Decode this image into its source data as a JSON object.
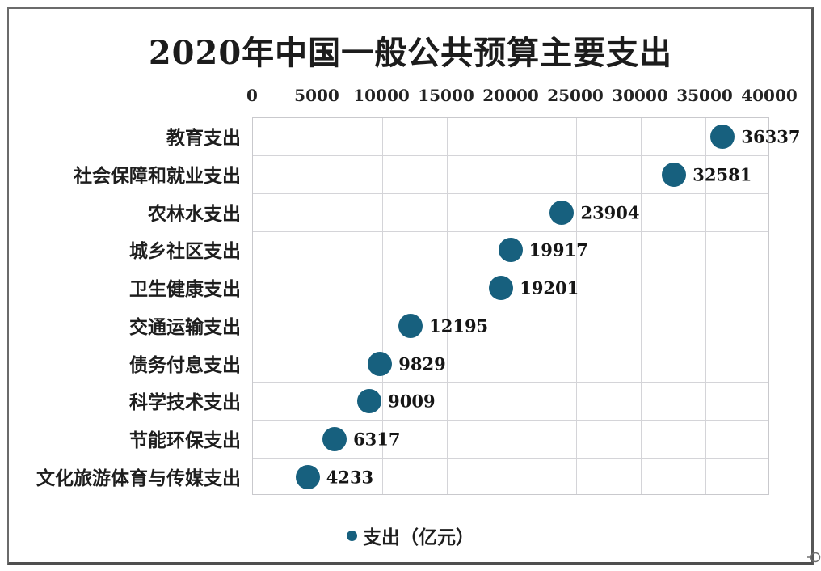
{
  "title": "2020年中国一般公共预算主要支出",
  "chart_data": {
    "type": "scatter",
    "orientation": "horizontal",
    "title": "2020年中国一般公共预算主要支出",
    "categories": [
      "教育支出",
      "社会保障和就业支出",
      "农林水支出",
      "城乡社区支出",
      "卫生健康支出",
      "交通运输支出",
      "债务付息支出",
      "科学技术支出",
      "节能环保支出",
      "文化旅游体育与传媒支出"
    ],
    "values": [
      36337,
      32581,
      23904,
      19917,
      19201,
      12195,
      9829,
      9009,
      6317,
      4233
    ],
    "series_name": "支出（亿元）",
    "xlim": [
      0,
      40000
    ],
    "x_ticks": [
      0,
      5000,
      10000,
      15000,
      20000,
      25000,
      30000,
      35000,
      40000
    ],
    "xlabel": "",
    "ylabel": "",
    "grid": true,
    "legend_position": "bottom",
    "marker_color": "#17607e",
    "axis_position": "top"
  },
  "legend": {
    "label": "支出（亿元）",
    "marker": "circle-icon",
    "color": "#17607e"
  },
  "colors": {
    "marker": "#17607e",
    "grid": "#d4d4d8",
    "text": "#1e1e1e",
    "frame_border": "#5f5f5f"
  }
}
